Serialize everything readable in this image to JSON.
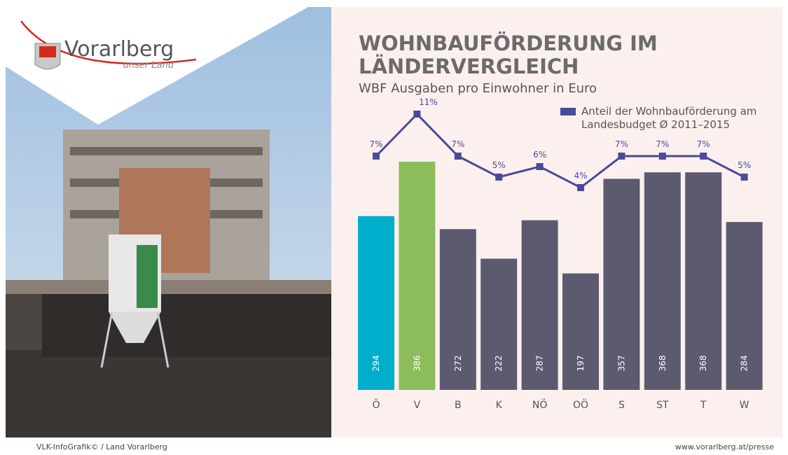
{
  "header": {
    "logo": "Vorarlberg",
    "logo_sub": "unser Land"
  },
  "footer": {
    "left": "VLK-InfoGrafik© / Land Vorarlberg",
    "right": "www.vorarlberg.at/presse"
  },
  "chart_data": {
    "type": "bar",
    "title": "WOHNBAUFÖRDERUNG IM LÄNDERVERGLEICH",
    "subtitle": "WBF Ausgaben pro Einwohner in Euro",
    "categories": [
      "Ö",
      "V",
      "B",
      "K",
      "NÖ",
      "OÖ",
      "S",
      "ST",
      "T",
      "W"
    ],
    "series": [
      {
        "type": "bar",
        "colors": [
          "#00aecb",
          "#8cbd5a",
          "#5c5a6e",
          "#5c5a6e",
          "#5c5a6e",
          "#5c5a6e",
          "#5c5a6e",
          "#5c5a6e",
          "#5c5a6e",
          "#5c5a6e"
        ],
        "values": [
          294,
          386,
          272,
          222,
          287,
          197,
          357,
          368,
          368,
          284
        ]
      },
      {
        "type": "line",
        "name": "Anteil der Wohnbauförderung am Landesbudget Ø 2011–2015",
        "color": "#4a4a99",
        "values": [
          7,
          11,
          7,
          5,
          6,
          4,
          7,
          7,
          7,
          5
        ],
        "value_labels": [
          "7%",
          "11%",
          "7%",
          "5%",
          "6%",
          "4%",
          "7%",
          "7%",
          "7%",
          "5%"
        ]
      }
    ]
  }
}
